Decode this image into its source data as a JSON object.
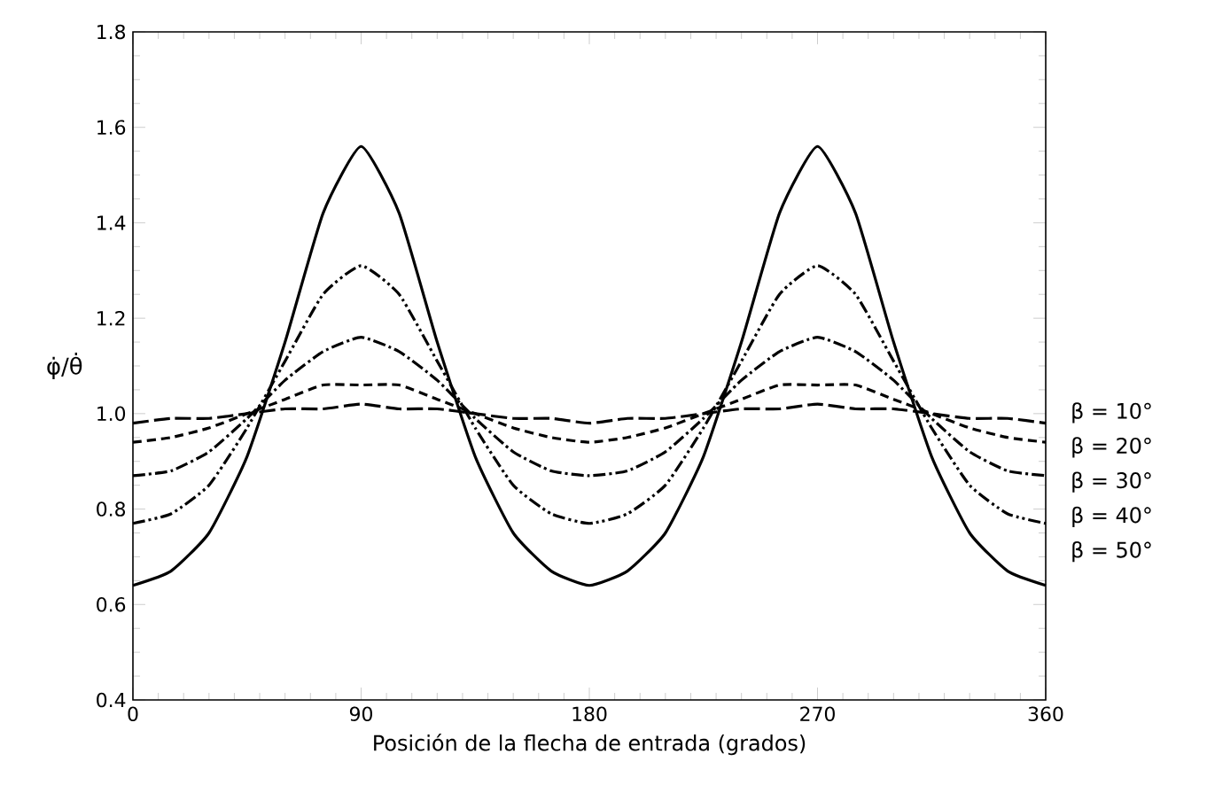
{
  "chart_data": {
    "type": "line",
    "xlabel": "Posición de la flecha de entrada (grados)",
    "ylabel": "φ̇/θ̇",
    "x": [
      0,
      15,
      30,
      45,
      60,
      75,
      90,
      105,
      120,
      135,
      150,
      165,
      180,
      195,
      210,
      225,
      240,
      255,
      270,
      285,
      300,
      315,
      330,
      345,
      360
    ],
    "xlim": [
      0,
      360
    ],
    "xticks": [
      0,
      90,
      180,
      270,
      360
    ],
    "ylim": [
      0.4,
      1.8
    ],
    "yticks": [
      {
        "value": 0.4,
        "label": "0.4"
      },
      {
        "value": 0.6,
        "label": "0.6"
      },
      {
        "value": 0.8,
        "label": "0.8"
      },
      {
        "value": 1.0,
        "label": "1.0"
      },
      {
        "value": 1.2,
        "label": "1.2"
      },
      {
        "value": 1.4,
        "label": "1.4"
      },
      {
        "value": 1.6,
        "label": "1.6"
      },
      {
        "value": 1.8,
        "label": "1.8"
      }
    ],
    "grid": false,
    "marker": "none",
    "color": "#000000",
    "series": [
      {
        "name": "β = 10°",
        "line_style": "dashed",
        "values": [
          0.98,
          0.99,
          0.99,
          1.0,
          1.01,
          1.01,
          1.02,
          1.01,
          1.01,
          1.0,
          0.99,
          0.99,
          0.98,
          0.99,
          0.99,
          1.0,
          1.01,
          1.01,
          1.02,
          1.01,
          1.01,
          1.0,
          0.99,
          0.99,
          0.98
        ]
      },
      {
        "name": "β = 20°",
        "line_style": "dashed",
        "values": [
          0.94,
          0.95,
          0.97,
          1.0,
          1.03,
          1.06,
          1.06,
          1.06,
          1.03,
          1.0,
          0.97,
          0.95,
          0.94,
          0.95,
          0.97,
          1.0,
          1.03,
          1.06,
          1.06,
          1.06,
          1.03,
          1.0,
          0.97,
          0.95,
          0.94
        ]
      },
      {
        "name": "β = 30°",
        "line_style": "dashed",
        "values": [
          0.87,
          0.88,
          0.92,
          0.99,
          1.07,
          1.13,
          1.16,
          1.13,
          1.07,
          0.99,
          0.92,
          0.88,
          0.87,
          0.88,
          0.92,
          0.99,
          1.07,
          1.13,
          1.16,
          1.13,
          1.07,
          0.99,
          0.92,
          0.88,
          0.87
        ]
      },
      {
        "name": "β = 40°",
        "line_style": "dashed",
        "values": [
          0.77,
          0.79,
          0.85,
          0.97,
          1.11,
          1.25,
          1.31,
          1.25,
          1.11,
          0.97,
          0.85,
          0.79,
          0.77,
          0.79,
          0.85,
          0.97,
          1.11,
          1.25,
          1.31,
          1.25,
          1.11,
          0.97,
          0.85,
          0.79,
          0.77
        ]
      },
      {
        "name": "β = 50°",
        "line_style": "solid",
        "values": [
          0.64,
          0.67,
          0.75,
          0.91,
          1.15,
          1.42,
          1.56,
          1.42,
          1.15,
          0.91,
          0.75,
          0.67,
          0.64,
          0.67,
          0.75,
          0.91,
          1.15,
          1.42,
          1.56,
          1.42,
          1.15,
          0.91,
          0.75,
          0.67,
          0.64
        ]
      }
    ]
  }
}
